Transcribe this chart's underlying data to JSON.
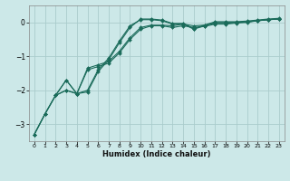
{
  "bg_color": "#cce8e8",
  "grid_color": "#aacccc",
  "line_color": "#1a6b5a",
  "xlabel": "Humidex (Indice chaleur)",
  "xlim": [
    -0.5,
    23.5
  ],
  "ylim": [
    -3.5,
    0.5
  ],
  "yticks": [
    0,
    -1,
    -2,
    -3
  ],
  "xticks": [
    0,
    1,
    2,
    3,
    4,
    5,
    6,
    7,
    8,
    9,
    10,
    11,
    12,
    13,
    14,
    15,
    16,
    17,
    18,
    19,
    20,
    21,
    22,
    23
  ],
  "curve1_x": [
    0,
    1,
    2,
    3,
    4,
    5,
    6,
    7,
    8,
    9,
    10,
    11,
    12,
    13,
    14,
    15,
    16,
    17,
    18,
    19,
    20,
    21,
    22,
    23
  ],
  "curve1_y": [
    -3.3,
    -2.7,
    -2.15,
    -1.7,
    -2.1,
    -2.0,
    -1.4,
    -1.05,
    -0.55,
    -0.1,
    0.08,
    0.08,
    0.05,
    -0.05,
    -0.05,
    -0.2,
    -0.1,
    0.0,
    0.0,
    0.0,
    0.02,
    0.05,
    0.08,
    0.1
  ],
  "curve2_x": [
    0,
    1,
    2,
    3,
    4,
    5,
    6,
    7,
    8,
    9,
    10,
    11,
    12,
    13,
    14,
    15,
    16,
    17,
    18,
    19,
    20,
    21,
    22,
    23
  ],
  "curve2_y": [
    -3.3,
    -2.7,
    -2.15,
    -2.0,
    -2.1,
    -1.4,
    -1.3,
    -1.2,
    -0.9,
    -0.5,
    -0.2,
    -0.1,
    -0.1,
    -0.15,
    -0.1,
    -0.15,
    -0.12,
    -0.05,
    -0.05,
    -0.02,
    0.0,
    0.05,
    0.08,
    0.1
  ],
  "curve3_x": [
    0,
    1,
    2,
    3,
    4,
    5,
    6,
    7,
    8,
    9,
    10,
    11,
    12,
    13,
    14,
    15,
    16,
    17,
    18,
    19,
    20,
    21,
    22,
    23
  ],
  "curve3_y": [
    -3.3,
    -2.7,
    -2.15,
    -2.0,
    -2.1,
    -1.35,
    -1.25,
    -1.15,
    -0.85,
    -0.45,
    -0.15,
    -0.08,
    -0.08,
    -0.1,
    -0.05,
    -0.1,
    -0.08,
    -0.03,
    -0.03,
    0.0,
    0.02,
    0.05,
    0.08,
    0.1
  ],
  "curve4_x": [
    2,
    3,
    4,
    5,
    6,
    7,
    8,
    9,
    10,
    11,
    12,
    13,
    14,
    15,
    16,
    17,
    18,
    19,
    20,
    21,
    22,
    23
  ],
  "curve4_y": [
    -2.15,
    -1.7,
    -2.1,
    -2.05,
    -1.45,
    -1.1,
    -0.6,
    -0.15,
    0.1,
    0.1,
    0.07,
    -0.03,
    -0.03,
    -0.18,
    -0.08,
    0.02,
    0.02,
    0.02,
    0.04,
    0.07,
    0.1,
    0.12
  ]
}
